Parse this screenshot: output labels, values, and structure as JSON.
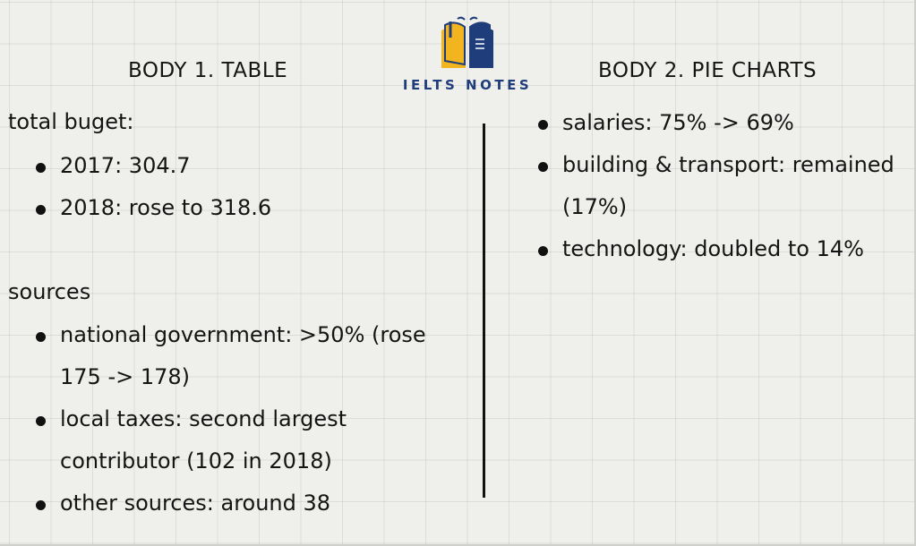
{
  "logo": {
    "brand_text": "IELTS NOTES",
    "icon": "open-book-icon"
  },
  "left": {
    "heading": "BODY 1. TABLE",
    "budget": {
      "title": "total buget:",
      "items": [
        "2017: 304.7",
        "2018: rose to 318.6"
      ]
    },
    "sources": {
      "title": "sources",
      "items": [
        "national government: >50% (rose 175 -> 178)",
        "local taxes: second largest contributor (102 in 2018)",
        "other sources: around 38"
      ]
    }
  },
  "right": {
    "heading": "BODY 2. PIE CHARTS",
    "items": [
      "salaries: 75% -> 69%",
      "building & transport: remained (17%)",
      "technology: doubled to 14%"
    ]
  },
  "colors": {
    "accent_blue": "#1f3d7a",
    "accent_yellow": "#f3b51f",
    "grid": "#c9c9c5"
  }
}
